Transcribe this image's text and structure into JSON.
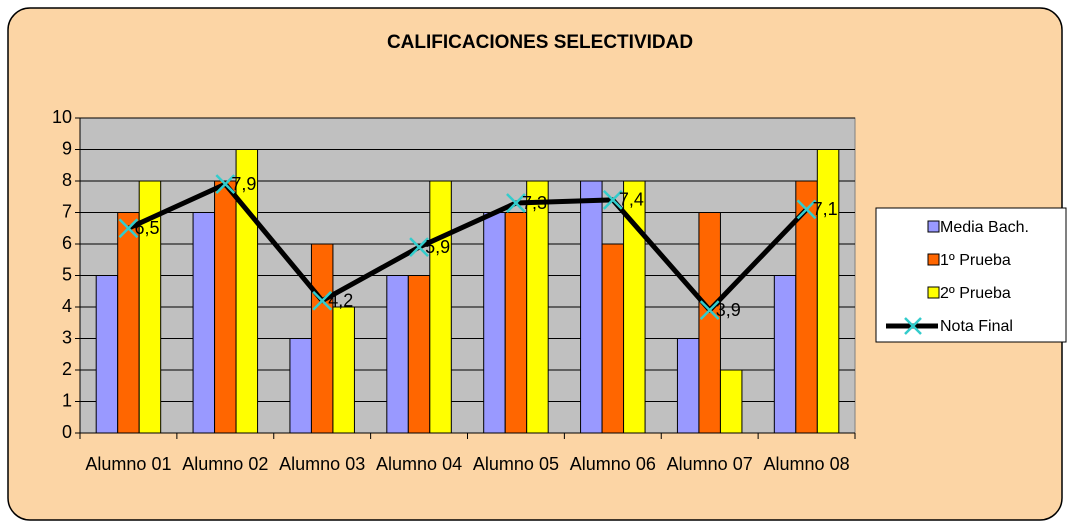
{
  "chart_data": {
    "type": "bar",
    "title": "CALIFICACIONES SELECTIVIDAD",
    "categories": [
      "Alumno 01",
      "Alumno 02",
      "Alumno 03",
      "Alumno 04",
      "Alumno 05",
      "Alumno 06",
      "Alumno 07",
      "Alumno 08"
    ],
    "series": [
      {
        "name": "Media Bach.",
        "type": "bar",
        "color": "#9999ff",
        "values": [
          5,
          7,
          3,
          5,
          7,
          8,
          3,
          5
        ]
      },
      {
        "name": "1º Prueba",
        "type": "bar",
        "color": "#ff6600",
        "values": [
          7,
          8,
          6,
          5,
          7,
          6,
          7,
          8
        ]
      },
      {
        "name": "2º Prueba",
        "type": "bar",
        "color": "#ffff00",
        "values": [
          8,
          9,
          4,
          8,
          8,
          8,
          2,
          9
        ]
      },
      {
        "name": "Nota Final",
        "type": "line",
        "color": "#000000",
        "marker_color": "#33cccc",
        "values": [
          6.5,
          7.9,
          4.2,
          5.9,
          7.3,
          7.4,
          3.9,
          7.1
        ],
        "value_labels": [
          "6,5",
          "7,9",
          "4,2",
          "5,9",
          "7,3",
          "7,4",
          "3,9",
          "7,1"
        ]
      }
    ],
    "ylim": [
      0,
      10
    ],
    "yticks": [
      0,
      1,
      2,
      3,
      4,
      5,
      6,
      7,
      8,
      9,
      10
    ],
    "grid": true,
    "legend": "right"
  }
}
